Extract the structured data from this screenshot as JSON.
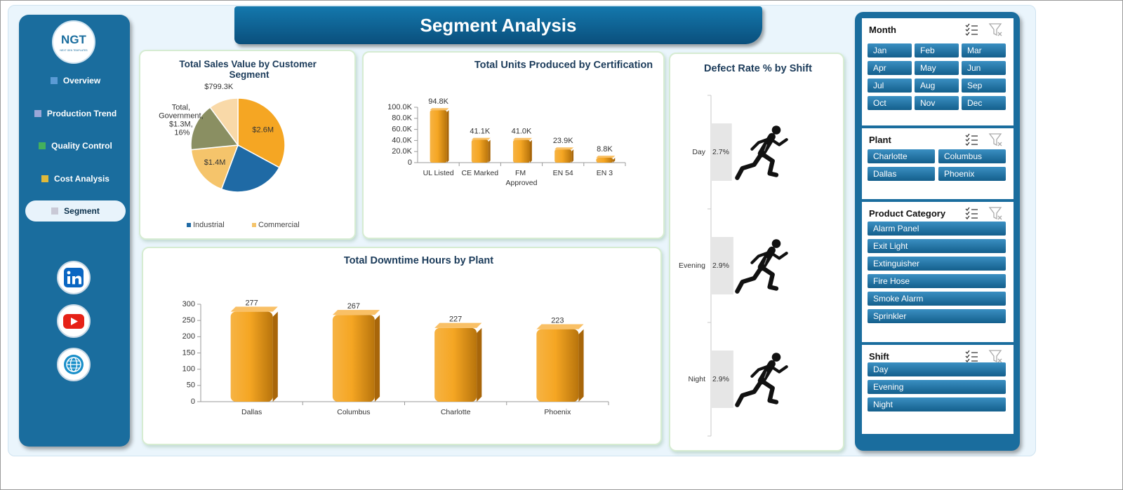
{
  "header": {
    "title": "Segment Analysis"
  },
  "sidebar": {
    "logo": "NGT",
    "logo_subtitle": "NEXT GEN TEMPLATES",
    "nav": [
      "Overview",
      "Production Trend",
      "Quality Control",
      "Cost Analysis",
      "Segment"
    ],
    "active": 4
  },
  "chart_data": [
    {
      "type": "pie",
      "title": "Total Sales Value by Customer Segment",
      "categories": [
        null,
        "Industrial",
        "Commercial",
        null,
        null
      ],
      "values": [
        2600000,
        1800000,
        1400000,
        1300000,
        799300
      ],
      "value_labels": [
        "$2.6M",
        null,
        "$1.4M",
        "Total, Government, $1.3M, 16%",
        "$799.3K"
      ],
      "colors": [
        "#f5a623",
        "#1f6aa5",
        "#f5c46b",
        "#8a8f62",
        "#f9d9a8"
      ]
    },
    {
      "type": "bar",
      "title": "Total Units Produced by Certification",
      "categories": [
        "UL Listed",
        "CE Marked",
        "FM Approved",
        "EN 54",
        "EN 3"
      ],
      "values": [
        94800,
        41100,
        41000,
        23900,
        8800
      ],
      "value_labels": [
        "94.8K",
        "41.1K",
        "41.0K",
        "23.9K",
        "8.8K"
      ],
      "color": "#f5a623",
      "ylim": [
        0,
        100000
      ],
      "yticks": [
        0,
        {
          "value": 20000,
          "label": "20.0K"
        },
        {
          "value": 40000,
          "label": "40.0K"
        },
        {
          "value": 60000,
          "label": "60.0K"
        },
        {
          "value": 80000,
          "label": "80.0K"
        },
        {
          "value": 100000,
          "label": "100.0K"
        }
      ]
    },
    {
      "type": "bar",
      "title": "Total Downtime Hours by Plant",
      "categories": [
        "Dallas",
        "Columbus",
        "Charlotte",
        "Phoenix"
      ],
      "values": [
        277,
        267,
        227,
        223
      ],
      "color": "#f5a623",
      "ylim": [
        0,
        300
      ],
      "yticks": [
        0,
        50,
        100,
        150,
        200,
        250,
        300
      ]
    },
    {
      "type": "pictograph",
      "title": "Defect Rate % by Shift",
      "categories": [
        "Day",
        "Evening",
        "Night"
      ],
      "values": [
        2.7,
        2.9,
        2.9
      ],
      "value_labels": [
        "2.7%",
        "2.9%",
        "2.9%"
      ],
      "color": "#e6e6e6",
      "xlim": [
        0,
        3
      ]
    }
  ],
  "slicers": [
    {
      "title": "Month",
      "items": [
        "Jan",
        "Feb",
        "Mar",
        "Apr",
        "May",
        "Jun",
        "Jul",
        "Aug",
        "Sep",
        "Oct",
        "Nov",
        "Dec"
      ]
    },
    {
      "title": "Plant",
      "items": [
        "Charlotte",
        "Columbus",
        "Dallas",
        "Phoenix"
      ]
    },
    {
      "title": "Product Category",
      "items": [
        "Alarm Panel",
        "Exit Light",
        "Extinguisher",
        "Fire Hose",
        "Smoke Alarm",
        "Sprinkler"
      ]
    },
    {
      "title": "Shift",
      "items": [
        "Day",
        "Evening",
        "Night"
      ]
    }
  ]
}
